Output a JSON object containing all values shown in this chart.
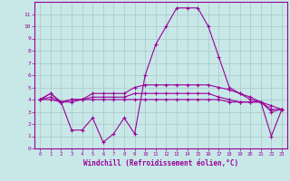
{
  "x_labels": [
    0,
    1,
    2,
    3,
    4,
    5,
    6,
    7,
    8,
    9,
    10,
    11,
    12,
    13,
    14,
    15,
    16,
    17,
    18,
    19,
    20,
    21,
    22,
    23
  ],
  "line1": [
    4.0,
    4.5,
    3.8,
    4.0,
    4.0,
    4.5,
    4.5,
    4.5,
    4.5,
    5.0,
    5.2,
    5.2,
    5.2,
    5.2,
    5.2,
    5.2,
    5.2,
    5.0,
    4.8,
    4.5,
    4.2,
    3.8,
    3.5,
    3.2
  ],
  "line2": [
    4.0,
    4.2,
    3.8,
    4.0,
    4.0,
    4.2,
    4.2,
    4.2,
    4.2,
    4.5,
    4.5,
    4.5,
    4.5,
    4.5,
    4.5,
    4.5,
    4.5,
    4.2,
    4.0,
    3.8,
    3.8,
    3.8,
    3.2,
    3.2
  ],
  "line3": [
    4.0,
    4.0,
    3.8,
    3.8,
    4.0,
    4.0,
    4.0,
    4.0,
    4.0,
    4.0,
    4.0,
    4.0,
    4.0,
    4.0,
    4.0,
    4.0,
    4.0,
    4.0,
    3.8,
    3.8,
    3.8,
    3.8,
    3.0,
    3.2
  ],
  "line4": [
    4.0,
    4.5,
    3.8,
    1.5,
    1.5,
    2.5,
    0.5,
    1.2,
    2.5,
    1.2,
    6.0,
    8.5,
    10.0,
    11.5,
    11.5,
    11.5,
    10.0,
    7.5,
    5.0,
    4.5,
    4.0,
    3.8,
    1.0,
    3.2
  ],
  "line_color": "#990099",
  "bg_color": "#c8e8e8",
  "grid_color": "#a8c8c8",
  "ylim": [
    0,
    12
  ],
  "xlim": [
    -0.5,
    23.5
  ],
  "yticks": [
    0,
    1,
    2,
    3,
    4,
    5,
    6,
    7,
    8,
    9,
    10,
    11
  ],
  "xlabel": "Windchill (Refroidissement éolien,°C)"
}
